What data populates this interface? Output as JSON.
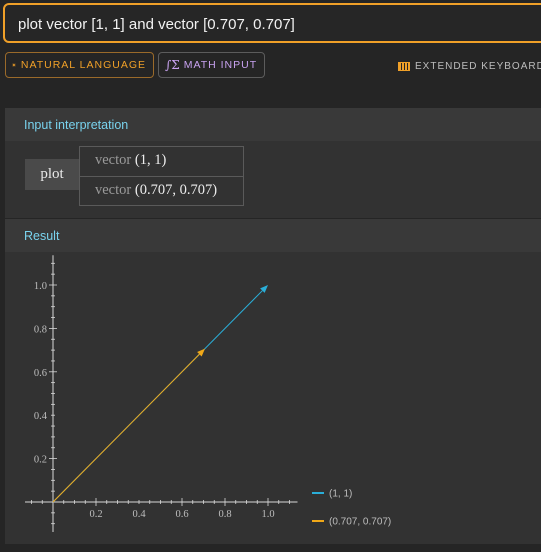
{
  "query": {
    "text": "plot vector [1, 1] and vector [0.707, 0.707]"
  },
  "modes": {
    "natural_language": "NATURAL LANGUAGE",
    "math_input": "MATH INPUT"
  },
  "extended_keyboard": "EXTENDED KEYBOARD",
  "colors": {
    "accent": "#f0a028",
    "pod_title": "#79d3ee",
    "series1": "#2aaed8",
    "series2": "#f0a818"
  },
  "input_interpretation": {
    "title": "Input interpretation",
    "function": "plot",
    "rows": [
      {
        "fn": "vector",
        "args": "(1, 1)"
      },
      {
        "fn": "vector",
        "args": "(0.707, 0.707)"
      }
    ]
  },
  "result": {
    "title": "Result"
  },
  "chart_data": {
    "type": "line",
    "xlim": [
      0,
      1.1
    ],
    "ylim": [
      0,
      1.1
    ],
    "x_ticks": [
      "0.2",
      "0.4",
      "0.6",
      "0.8",
      "1.0"
    ],
    "y_ticks": [
      "0.2",
      "0.4",
      "0.6",
      "0.8",
      "1.0"
    ],
    "grid": false,
    "legend_position": "bottom-right",
    "series": [
      {
        "name": "(1, 1)",
        "color": "#2aaed8",
        "from": [
          0,
          0
        ],
        "to": [
          1,
          1
        ]
      },
      {
        "name": "(0.707, 0.707)",
        "color": "#f0a818",
        "from": [
          0,
          0
        ],
        "to": [
          0.707,
          0.707
        ]
      }
    ]
  }
}
